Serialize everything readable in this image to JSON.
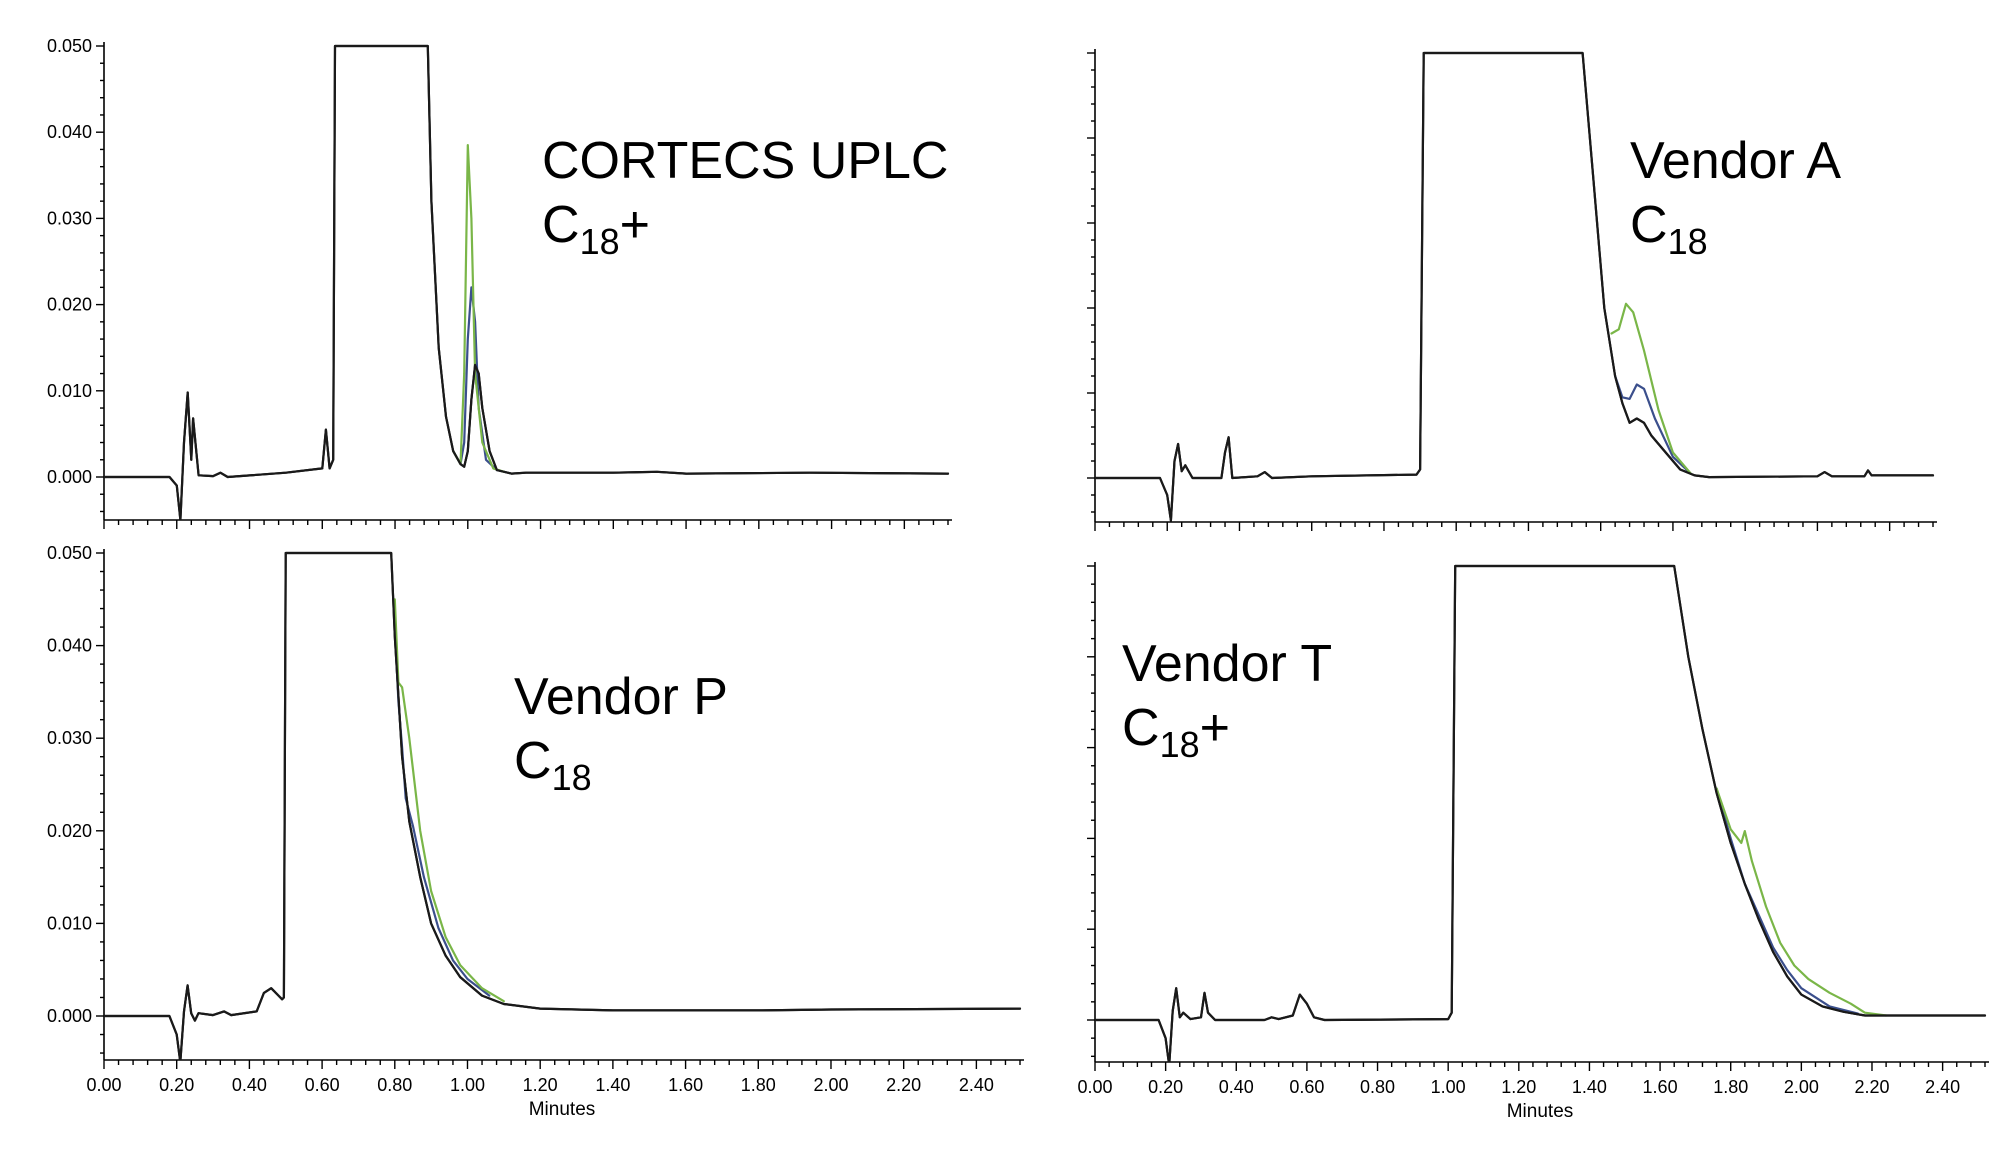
{
  "colors": {
    "green": "#7ab648",
    "blue": "#3b4f8c",
    "black": "#1a1a1a"
  },
  "chart_data": [
    {
      "type": "line",
      "label_line1": "CORTECS UPLC",
      "label_c": "C",
      "label_sub": "18",
      "label_suffix": "+",
      "xlabel": "",
      "ylabel": "",
      "xlim": [
        0,
        2.32
      ],
      "ylim": [
        -0.005,
        0.05
      ],
      "x_ticks": [
        "0.00",
        "0.20",
        "0.40",
        "0.60",
        "0.80",
        "1.00",
        "1.20",
        "1.40",
        "1.60",
        "1.80",
        "2.00",
        "2.20"
      ],
      "y_ticks": [
        "0.050",
        "0.040",
        "0.030",
        "0.020",
        "0.010",
        "0.000"
      ],
      "show_x_tick_labels": false,
      "show_y_tick_labels": true,
      "series": [
        {
          "color_key": "black",
          "points": [
            [
              0,
              0
            ],
            [
              0.18,
              0
            ],
            [
              0.2,
              -0.001
            ],
            [
              0.21,
              -0.005
            ],
            [
              0.22,
              0.004
            ],
            [
              0.23,
              0.0098
            ],
            [
              0.24,
              0.002
            ],
            [
              0.245,
              0.0068
            ],
            [
              0.26,
              0.0002
            ],
            [
              0.3,
              0.0001
            ],
            [
              0.32,
              0.0005
            ],
            [
              0.34,
              0
            ],
            [
              0.5,
              0.0005
            ],
            [
              0.6,
              0.001
            ],
            [
              0.61,
              0.0055
            ],
            [
              0.62,
              0.001
            ],
            [
              0.63,
              0.002
            ],
            [
              0.635,
              0.05
            ],
            [
              0.89,
              0.05
            ],
            [
              0.9,
              0.032
            ],
            [
              0.92,
              0.015
            ],
            [
              0.94,
              0.007
            ],
            [
              0.96,
              0.003
            ],
            [
              0.98,
              0.0015
            ],
            [
              0.99,
              0.0012
            ],
            [
              1.0,
              0.003
            ],
            [
              1.01,
              0.009
            ],
            [
              1.02,
              0.013
            ],
            [
              1.03,
              0.012
            ],
            [
              1.04,
              0.008
            ],
            [
              1.06,
              0.003
            ],
            [
              1.08,
              0.0008
            ],
            [
              1.12,
              0.0004
            ],
            [
              1.16,
              0.0005
            ],
            [
              1.4,
              0.0005
            ],
            [
              1.52,
              0.0006
            ],
            [
              1.6,
              0.0004
            ],
            [
              1.94,
              0.0005
            ],
            [
              2.32,
              0.0004
            ]
          ]
        },
        {
          "color_key": "blue",
          "points": [
            [
              0.96,
              0.003
            ],
            [
              0.98,
              0.0015
            ],
            [
              0.99,
              0.004
            ],
            [
              1.0,
              0.016
            ],
            [
              1.01,
              0.022
            ],
            [
              1.02,
              0.018
            ],
            [
              1.03,
              0.008
            ],
            [
              1.05,
              0.002
            ],
            [
              1.08,
              0.0008
            ]
          ]
        },
        {
          "color_key": "green",
          "points": [
            [
              0.96,
              0.003
            ],
            [
              0.98,
              0.0015
            ],
            [
              0.99,
              0.012
            ],
            [
              1.0,
              0.0385
            ],
            [
              1.01,
              0.03
            ],
            [
              1.02,
              0.012
            ],
            [
              1.04,
              0.004
            ],
            [
              1.07,
              0.001
            ],
            [
              1.1,
              0.0006
            ]
          ]
        }
      ]
    },
    {
      "type": "line",
      "label_line1": "Vendor A",
      "label_c": "C",
      "label_sub": "18",
      "label_suffix": "",
      "xlabel": "",
      "ylabel": "",
      "xlim": [
        0,
        2.32
      ],
      "ylim": [
        -0.005,
        0.05
      ],
      "x_ticks": [
        "0.00",
        "0.20",
        "0.40",
        "0.60",
        "0.80",
        "1.00",
        "1.20",
        "1.40",
        "1.60",
        "1.80",
        "2.00",
        "2.20"
      ],
      "y_ticks": [],
      "show_x_tick_labels": false,
      "show_y_tick_labels": false,
      "series": [
        {
          "color_key": "black",
          "points": [
            [
              0,
              0
            ],
            [
              0.18,
              0
            ],
            [
              0.2,
              -0.002
            ],
            [
              0.21,
              -0.005
            ],
            [
              0.22,
              0.002
            ],
            [
              0.23,
              0.004
            ],
            [
              0.24,
              0.0008
            ],
            [
              0.25,
              0.0015
            ],
            [
              0.27,
              0
            ],
            [
              0.35,
              0
            ],
            [
              0.36,
              0.003
            ],
            [
              0.37,
              0.0048
            ],
            [
              0.38,
              0
            ],
            [
              0.45,
              0.0002
            ],
            [
              0.47,
              0.0007
            ],
            [
              0.49,
              0
            ],
            [
              0.6,
              0.0002
            ],
            [
              0.89,
              0.0004
            ],
            [
              0.9,
              0.001
            ],
            [
              0.91,
              0.05
            ],
            [
              1.35,
              0.05
            ],
            [
              1.38,
              0.035
            ],
            [
              1.41,
              0.02
            ],
            [
              1.44,
              0.012
            ],
            [
              1.46,
              0.0088
            ],
            [
              1.48,
              0.0065
            ],
            [
              1.5,
              0.007
            ],
            [
              1.52,
              0.0065
            ],
            [
              1.54,
              0.005
            ],
            [
              1.58,
              0.003
            ],
            [
              1.62,
              0.001
            ],
            [
              1.66,
              0.0003
            ],
            [
              1.7,
              0.0001
            ],
            [
              2.0,
              0.0002
            ],
            [
              2.02,
              0.0007
            ],
            [
              2.04,
              0.0002
            ],
            [
              2.13,
              0.0002
            ],
            [
              2.14,
              0.0009
            ],
            [
              2.15,
              0.0003
            ],
            [
              2.32,
              0.0003
            ]
          ]
        },
        {
          "color_key": "blue",
          "points": [
            [
              1.44,
              0.012
            ],
            [
              1.46,
              0.0095
            ],
            [
              1.48,
              0.0093
            ],
            [
              1.5,
              0.011
            ],
            [
              1.52,
              0.0105
            ],
            [
              1.55,
              0.007
            ],
            [
              1.6,
              0.0025
            ],
            [
              1.65,
              0.0005
            ]
          ]
        },
        {
          "color_key": "green",
          "points": [
            [
              1.43,
              0.017
            ],
            [
              1.45,
              0.0175
            ],
            [
              1.47,
              0.0205
            ],
            [
              1.49,
              0.0195
            ],
            [
              1.52,
              0.015
            ],
            [
              1.56,
              0.008
            ],
            [
              1.6,
              0.003
            ],
            [
              1.65,
              0.0005
            ]
          ]
        }
      ]
    },
    {
      "type": "line",
      "label_line1": "Vendor P",
      "label_c": "C",
      "label_sub": "18",
      "label_suffix": "",
      "xlabel": "Minutes",
      "ylabel": "",
      "xlim": [
        0,
        2.52
      ],
      "ylim": [
        -0.005,
        0.05
      ],
      "x_ticks": [
        "0.00",
        "0.20",
        "0.40",
        "0.60",
        "0.80",
        "1.00",
        "1.20",
        "1.40",
        "1.60",
        "1.80",
        "2.00",
        "2.20",
        "2.40"
      ],
      "y_ticks": [
        "0.050",
        "0.040",
        "0.030",
        "0.020",
        "0.010",
        "0.000"
      ],
      "show_x_tick_labels": true,
      "show_y_tick_labels": true,
      "series": [
        {
          "color_key": "black",
          "points": [
            [
              0,
              0
            ],
            [
              0.18,
              0
            ],
            [
              0.2,
              -0.002
            ],
            [
              0.21,
              -0.005
            ],
            [
              0.22,
              0.0005
            ],
            [
              0.23,
              0.0033
            ],
            [
              0.24,
              0.0003
            ],
            [
              0.25,
              -0.0005
            ],
            [
              0.26,
              0.0003
            ],
            [
              0.3,
              0.0001
            ],
            [
              0.33,
              0.0005
            ],
            [
              0.35,
              0.0001
            ],
            [
              0.42,
              0.0005
            ],
            [
              0.44,
              0.0025
            ],
            [
              0.46,
              0.003
            ],
            [
              0.48,
              0.0022
            ],
            [
              0.49,
              0.0018
            ],
            [
              0.495,
              0.002
            ],
            [
              0.5,
              0.05
            ],
            [
              0.79,
              0.05
            ],
            [
              0.8,
              0.041
            ],
            [
              0.82,
              0.028
            ],
            [
              0.84,
              0.021
            ],
            [
              0.87,
              0.015
            ],
            [
              0.9,
              0.01
            ],
            [
              0.94,
              0.0065
            ],
            [
              0.98,
              0.0042
            ],
            [
              1.04,
              0.0022
            ],
            [
              1.1,
              0.0013
            ],
            [
              1.2,
              0.0008
            ],
            [
              1.4,
              0.0006
            ],
            [
              1.6,
              0.0006
            ],
            [
              1.8,
              0.0006
            ],
            [
              2.0,
              0.0007
            ],
            [
              2.52,
              0.0008
            ]
          ]
        },
        {
          "color_key": "blue",
          "points": [
            [
              0.8,
              0.042
            ],
            [
              0.81,
              0.034
            ],
            [
              0.82,
              0.029
            ],
            [
              0.83,
              0.0235
            ],
            [
              0.85,
              0.0205
            ],
            [
              0.88,
              0.015
            ],
            [
              0.92,
              0.0095
            ],
            [
              0.96,
              0.006
            ],
            [
              1.0,
              0.004
            ],
            [
              1.06,
              0.0022
            ]
          ]
        },
        {
          "color_key": "green",
          "points": [
            [
              0.8,
              0.045
            ],
            [
              0.81,
              0.036
            ],
            [
              0.82,
              0.0355
            ],
            [
              0.84,
              0.03
            ],
            [
              0.87,
              0.02
            ],
            [
              0.9,
              0.0135
            ],
            [
              0.94,
              0.0085
            ],
            [
              0.98,
              0.0055
            ],
            [
              1.04,
              0.003
            ],
            [
              1.1,
              0.0016
            ]
          ]
        }
      ]
    },
    {
      "type": "line",
      "label_line1": "Vendor T",
      "label_c": "C",
      "label_sub": "18",
      "label_suffix": "+",
      "xlabel": "Minutes",
      "ylabel": "",
      "xlim": [
        0,
        2.52
      ],
      "ylim": [
        -0.005,
        0.05
      ],
      "x_ticks": [
        "0.00",
        "0.20",
        "0.40",
        "0.60",
        "0.80",
        "1.00",
        "1.20",
        "1.40",
        "1.60",
        "1.80",
        "2.00",
        "2.20",
        "2.40"
      ],
      "y_ticks": [],
      "show_x_tick_labels": true,
      "show_y_tick_labels": false,
      "series": [
        {
          "color_key": "black",
          "points": [
            [
              0,
              0
            ],
            [
              0.18,
              0
            ],
            [
              0.2,
              -0.002
            ],
            [
              0.21,
              -0.005
            ],
            [
              0.22,
              0.001
            ],
            [
              0.23,
              0.0035
            ],
            [
              0.24,
              0.0003
            ],
            [
              0.25,
              0.0008
            ],
            [
              0.27,
              0.0001
            ],
            [
              0.3,
              0.0003
            ],
            [
              0.31,
              0.003
            ],
            [
              0.32,
              0.0008
            ],
            [
              0.34,
              0
            ],
            [
              0.48,
              0
            ],
            [
              0.5,
              0.0003
            ],
            [
              0.52,
              0.0001
            ],
            [
              0.56,
              0.0005
            ],
            [
              0.58,
              0.0028
            ],
            [
              0.6,
              0.0018
            ],
            [
              0.62,
              0.0003
            ],
            [
              0.65,
              0
            ],
            [
              1.0,
              0.0001
            ],
            [
              1.01,
              0.0008
            ],
            [
              1.02,
              0.05
            ],
            [
              1.64,
              0.05
            ],
            [
              1.68,
              0.04
            ],
            [
              1.72,
              0.032
            ],
            [
              1.76,
              0.025
            ],
            [
              1.8,
              0.0195
            ],
            [
              1.84,
              0.015
            ],
            [
              1.88,
              0.011
            ],
            [
              1.92,
              0.0075
            ],
            [
              1.96,
              0.0048
            ],
            [
              2.0,
              0.0028
            ],
            [
              2.06,
              0.0015
            ],
            [
              2.12,
              0.0009
            ],
            [
              2.18,
              0.0005
            ],
            [
              2.3,
              0.0005
            ],
            [
              2.52,
              0.0005
            ]
          ]
        },
        {
          "color_key": "blue",
          "points": [
            [
              1.76,
              0.0255
            ],
            [
              1.8,
              0.02
            ],
            [
              1.84,
              0.015
            ],
            [
              1.88,
              0.0115
            ],
            [
              1.92,
              0.008
            ],
            [
              1.96,
              0.0055
            ],
            [
              2.0,
              0.0035
            ],
            [
              2.08,
              0.0015
            ],
            [
              2.16,
              0.0007
            ]
          ]
        },
        {
          "color_key": "green",
          "points": [
            [
              1.76,
              0.0255
            ],
            [
              1.8,
              0.021
            ],
            [
              1.83,
              0.0195
            ],
            [
              1.84,
              0.0208
            ],
            [
              1.86,
              0.0175
            ],
            [
              1.9,
              0.0125
            ],
            [
              1.94,
              0.0085
            ],
            [
              1.98,
              0.006
            ],
            [
              2.02,
              0.0045
            ],
            [
              2.08,
              0.003
            ],
            [
              2.14,
              0.0018
            ],
            [
              2.18,
              0.0008
            ],
            [
              2.24,
              0.0005
            ]
          ]
        }
      ]
    }
  ]
}
